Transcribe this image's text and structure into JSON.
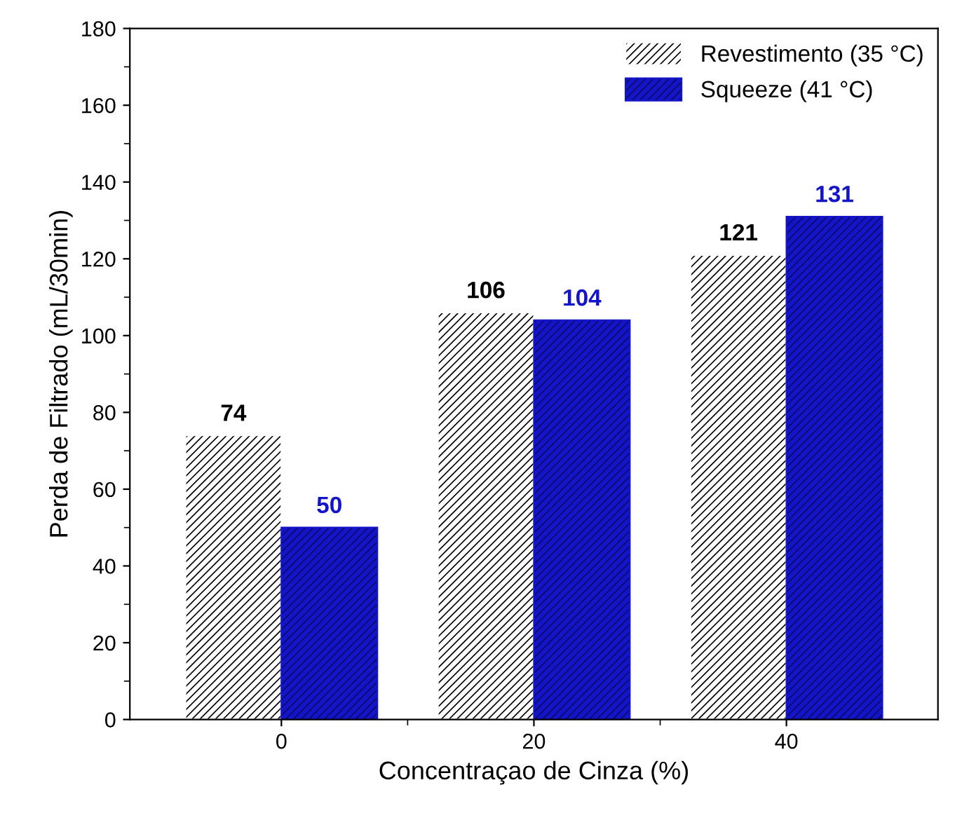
{
  "chart_data": {
    "type": "bar",
    "xlabel": "Concentraçao de Cinza (%)",
    "ylabel": "Perda de Filtrado (mL/30min)",
    "categories": [
      "0",
      "20",
      "40"
    ],
    "series": [
      {
        "name": "Revestimento (35 °C)",
        "color": "#ffffff",
        "values": [
          74,
          106,
          121
        ]
      },
      {
        "name": "Squeeze (41 °C)",
        "color": "#1414c8",
        "values": [
          50,
          104,
          131
        ]
      }
    ],
    "ylim": [
      0,
      180
    ],
    "yticks": [
      0,
      20,
      40,
      60,
      80,
      100,
      120,
      140,
      160,
      180
    ],
    "data_labels": true,
    "legend": "top right",
    "grid": false
  }
}
